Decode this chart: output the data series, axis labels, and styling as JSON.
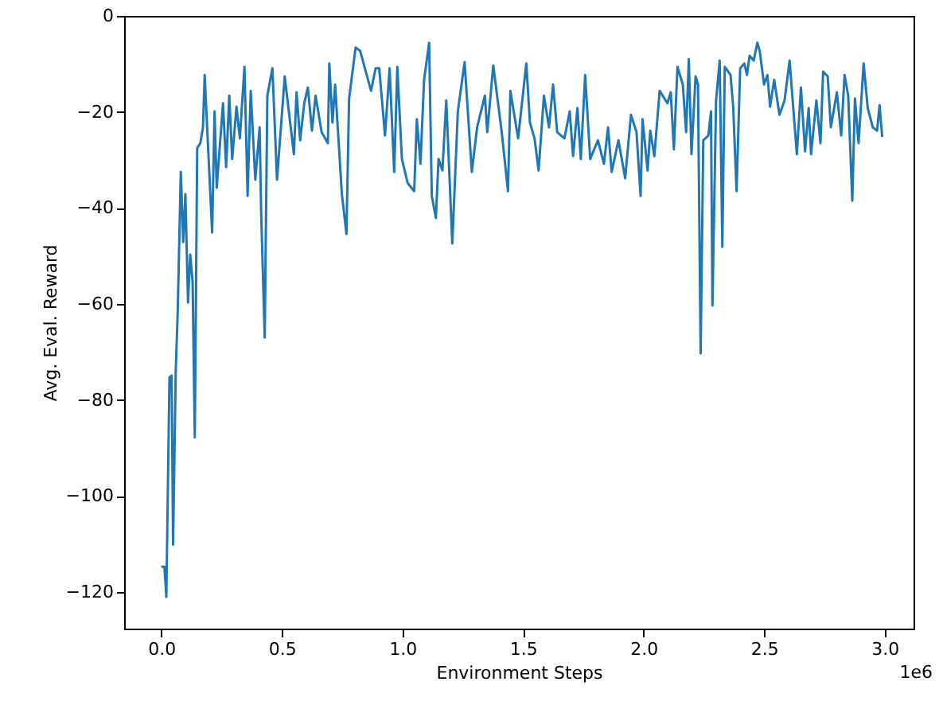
{
  "chart_data": {
    "type": "line",
    "xlabel": "Environment Steps",
    "ylabel": "Avg. Eval. Reward",
    "annotations": [
      "1e6"
    ],
    "xlim": [
      -0.154,
      3.12
    ],
    "ylim": [
      -127.6,
      0
    ],
    "xticks": [
      {
        "value": 0,
        "label": "0.0"
      },
      {
        "value": 0.5,
        "label": "0.5"
      },
      {
        "value": 1,
        "label": "1.0"
      },
      {
        "value": 1.5,
        "label": "1.5"
      },
      {
        "value": 2,
        "label": "2.0"
      },
      {
        "value": 2.5,
        "label": "2.5"
      },
      {
        "value": 3,
        "label": "3.0"
      }
    ],
    "yticks": [
      -120,
      -100,
      -80,
      -60,
      -40,
      -20,
      0
    ],
    "grid": false,
    "marker": "none",
    "line_style": "solid",
    "x": [
      0.0,
      0.013,
      0.021,
      0.034,
      0.043,
      0.049,
      0.06,
      0.068,
      0.081,
      0.091,
      0.1,
      0.111,
      0.12,
      0.13,
      0.139,
      0.149,
      0.162,
      0.173,
      0.18,
      0.211,
      0.221,
      0.23,
      0.256,
      0.269,
      0.282,
      0.294,
      0.312,
      0.326,
      0.345,
      0.358,
      0.371,
      0.39,
      0.408,
      0.414,
      0.429,
      0.44,
      0.461,
      0.48,
      0.512,
      0.55,
      0.561,
      0.576,
      0.593,
      0.608,
      0.625,
      0.64,
      0.665,
      0.691,
      0.697,
      0.71,
      0.721,
      0.749,
      0.768,
      0.779,
      0.806,
      0.825,
      0.87,
      0.889,
      0.904,
      0.928,
      0.947,
      0.966,
      0.979,
      0.998,
      1.022,
      1.049,
      1.06,
      1.075,
      1.09,
      1.111,
      1.122,
      1.139,
      1.15,
      1.166,
      1.182,
      1.207,
      1.23,
      1.258,
      1.288,
      1.31,
      1.342,
      1.352,
      1.377,
      1.412,
      1.438,
      1.448,
      1.48,
      1.514,
      1.529,
      1.548,
      1.565,
      1.587,
      1.608,
      1.625,
      1.642,
      1.672,
      1.694,
      1.708,
      1.726,
      1.74,
      1.758,
      1.779,
      1.811,
      1.836,
      1.853,
      1.868,
      1.896,
      1.924,
      1.948,
      1.971,
      1.988,
      1.996,
      2.017,
      2.028,
      2.045,
      2.067,
      2.099,
      2.113,
      2.126,
      2.141,
      2.163,
      2.177,
      2.188,
      2.199,
      2.216,
      2.226,
      2.237,
      2.248,
      2.269,
      2.28,
      2.286,
      2.301,
      2.316,
      2.327,
      2.337,
      2.361,
      2.372,
      2.386,
      2.401,
      2.418,
      2.429,
      2.44,
      2.457,
      2.472,
      2.482,
      2.5,
      2.514,
      2.525,
      2.542,
      2.564,
      2.585,
      2.606,
      2.636,
      2.653,
      2.67,
      2.685,
      2.695,
      2.717,
      2.734,
      2.745,
      2.764,
      2.777,
      2.802,
      2.82,
      2.834,
      2.849,
      2.866,
      2.877,
      2.892,
      2.913,
      2.93,
      2.951,
      2.969,
      2.979,
      2.99
    ],
    "series": [
      {
        "color": "#1f77b4",
        "values": [
          -114.7,
          -114.7,
          -121.0,
          -75.3,
          -74.9,
          -110.1,
          -73.9,
          -62.0,
          -32.5,
          -47.1,
          -37.1,
          -59.7,
          -49.7,
          -55.4,
          -87.8,
          -27.5,
          -26.5,
          -23.2,
          -12.3,
          -45.1,
          -19.9,
          -35.8,
          -18.2,
          -31.5,
          -16.6,
          -29.8,
          -18.9,
          -25.5,
          -10.6,
          -37.5,
          -15.6,
          -34.1,
          -23.2,
          -40.4,
          -67.0,
          -16.6,
          -10.9,
          -34.1,
          -12.6,
          -28.8,
          -15.9,
          -25.9,
          -18.2,
          -14.9,
          -23.9,
          -16.6,
          -24.2,
          -26.5,
          -9.9,
          -22.2,
          -14.3,
          -37.1,
          -45.4,
          -17.2,
          -6.6,
          -7.3,
          -15.6,
          -10.9,
          -10.9,
          -24.9,
          -10.9,
          -32.5,
          -10.6,
          -29.8,
          -34.8,
          -36.5,
          -21.5,
          -30.8,
          -13.3,
          -5.6,
          -37.5,
          -42.1,
          -29.8,
          -32.2,
          -17.6,
          -47.4,
          -19.9,
          -9.6,
          -32.5,
          -23.2,
          -16.6,
          -24.2,
          -10.3,
          -24.2,
          -36.5,
          -15.6,
          -25.5,
          -9.9,
          -22.2,
          -25.5,
          -32.2,
          -16.6,
          -23.2,
          -14.3,
          -24.2,
          -25.5,
          -19.9,
          -29.2,
          -19.2,
          -29.8,
          -12.3,
          -29.8,
          -25.9,
          -30.8,
          -23.2,
          -32.5,
          -25.9,
          -33.8,
          -20.6,
          -24.2,
          -37.5,
          -21.5,
          -32.2,
          -23.9,
          -29.2,
          -15.6,
          -18.2,
          -15.9,
          -27.8,
          -10.6,
          -14.3,
          -24.2,
          -9.0,
          -28.8,
          -12.6,
          -14.3,
          -70.3,
          -25.9,
          -24.9,
          -19.9,
          -60.3,
          -17.6,
          -9.3,
          -48.1,
          -10.6,
          -12.3,
          -18.9,
          -36.5,
          -10.9,
          -9.9,
          -12.3,
          -8.3,
          -9.3,
          -5.6,
          -7.3,
          -14.3,
          -12.3,
          -18.9,
          -13.3,
          -20.6,
          -17.6,
          -9.3,
          -28.8,
          -14.9,
          -28.2,
          -19.2,
          -28.8,
          -17.6,
          -26.5,
          -11.6,
          -12.6,
          -23.2,
          -15.9,
          -24.9,
          -12.3,
          -16.6,
          -38.5,
          -17.2,
          -26.5,
          -9.9,
          -19.2,
          -23.2,
          -23.9,
          -18.6,
          -25.2
        ]
      }
    ]
  }
}
